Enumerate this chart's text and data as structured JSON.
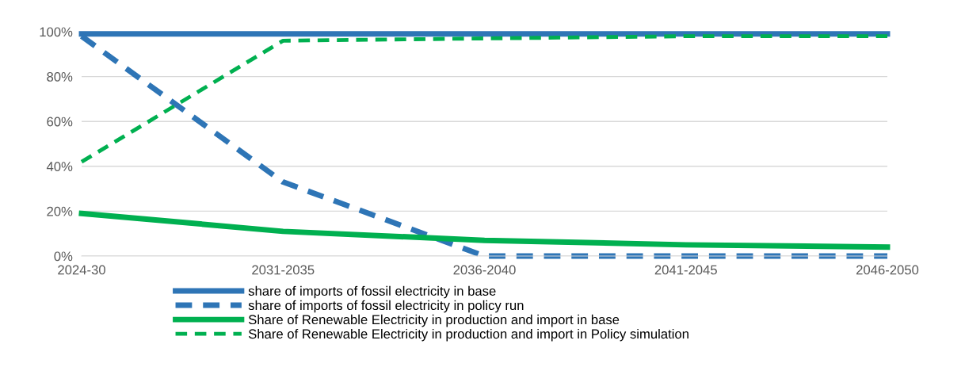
{
  "chart_data": {
    "type": "line",
    "categories": [
      "2024-30",
      "2031-2035",
      "2036-2040",
      "2041-2045",
      "2046-2050"
    ],
    "series": [
      {
        "name": "share of imports of fossil electricity in base",
        "color": "#2e75b6",
        "line_style": "solid",
        "values": [
          99,
          99,
          99,
          99,
          99
        ]
      },
      {
        "name": "share of imports of fossil electricity in policy run",
        "color": "#2e75b6",
        "line_style": "dashed",
        "values": [
          98,
          33,
          0,
          0,
          0
        ]
      },
      {
        "name": "Share of Renewable Electricity in production and import in base",
        "color": "#00b050",
        "line_style": "solid",
        "values": [
          19,
          11,
          7,
          5,
          4
        ]
      },
      {
        "name": "Share of Renewable Electricity in production and import in Policy simulation",
        "color": "#00b050",
        "line_style": "dashed",
        "values": [
          42,
          96,
          97,
          98,
          98
        ]
      }
    ],
    "ylim": [
      0,
      100
    ],
    "yticks": [
      {
        "value": 0,
        "label": "0%"
      },
      {
        "value": 20,
        "label": "20%"
      },
      {
        "value": 40,
        "label": "40%"
      },
      {
        "value": 60,
        "label": "60%"
      },
      {
        "value": 80,
        "label": "80%"
      },
      {
        "value": 100,
        "label": "100%"
      }
    ],
    "grid": "y",
    "legend": "bottom",
    "marker": "none"
  }
}
